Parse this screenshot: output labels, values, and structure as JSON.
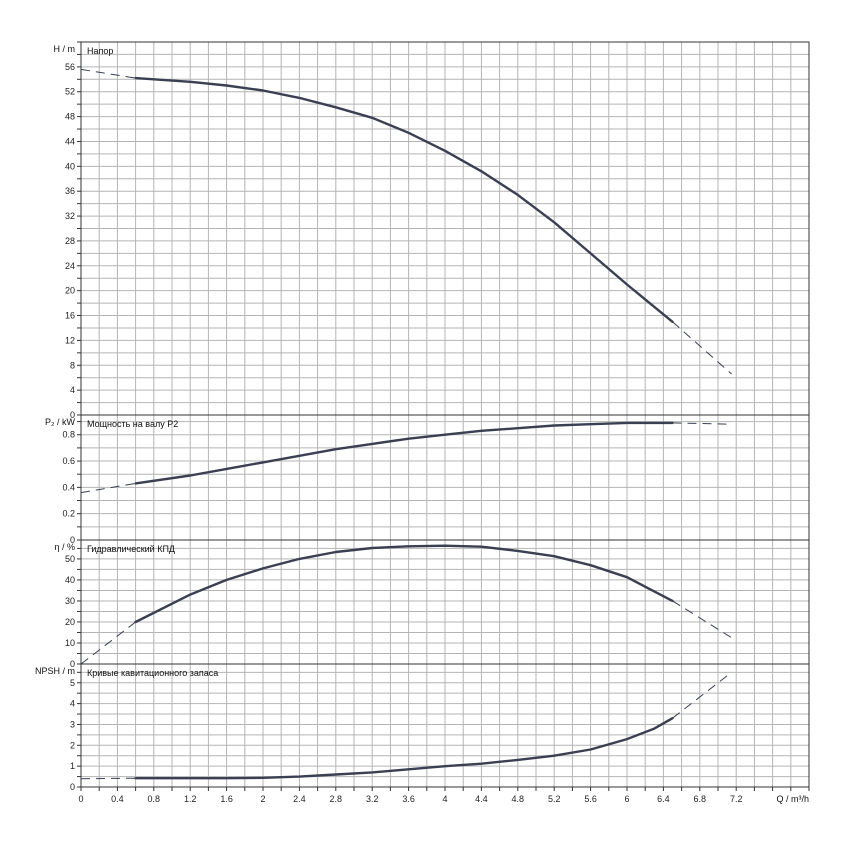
{
  "chart_data": {
    "type": "line",
    "x_axis": {
      "label": "Q / m³/h",
      "range": [
        0,
        8.0
      ],
      "ticks": [
        "0",
        "0.4",
        "0.8",
        "1.2",
        "1.6",
        "2",
        "2.4",
        "2.8",
        "3.2",
        "3.6",
        "4",
        "4.4",
        "4.8",
        "5.2",
        "5.6",
        "6",
        "6.4",
        "6.8",
        "7.2"
      ]
    },
    "panels": [
      {
        "id": "head",
        "title": "Напор",
        "ylabel": "H / m",
        "ylim": [
          0,
          60
        ],
        "yticks": [
          0,
          4,
          8,
          12,
          16,
          20,
          24,
          28,
          32,
          36,
          40,
          44,
          48,
          52,
          56
        ],
        "tick_step": 2,
        "label_step": 4,
        "solid": [
          [
            0.6,
            54.2
          ],
          [
            1.2,
            53.6
          ],
          [
            1.6,
            53.0
          ],
          [
            2.0,
            52.2
          ],
          [
            2.4,
            51.0
          ],
          [
            2.8,
            49.5
          ],
          [
            3.2,
            47.8
          ],
          [
            3.6,
            45.4
          ],
          [
            4.0,
            42.5
          ],
          [
            4.4,
            39.2
          ],
          [
            4.8,
            35.4
          ],
          [
            5.2,
            31.0
          ],
          [
            5.6,
            26.0
          ],
          [
            6.0,
            21.0
          ],
          [
            6.5,
            15.0
          ]
        ],
        "dashed_start": [
          [
            0.0,
            55.6
          ],
          [
            0.6,
            54.2
          ]
        ],
        "dashed_end": [
          [
            6.5,
            15.0
          ],
          [
            7.15,
            6.6
          ]
        ]
      },
      {
        "id": "power",
        "title": "Мощность на валу P2",
        "ylabel": "P₂ / kW",
        "ylim": [
          0,
          0.95
        ],
        "yticks": [
          0,
          0.2,
          0.4,
          0.6,
          0.8
        ],
        "tick_step": 0.1,
        "label_step": 0.2,
        "solid": [
          [
            0.6,
            0.43
          ],
          [
            1.2,
            0.49
          ],
          [
            1.6,
            0.54
          ],
          [
            2.0,
            0.59
          ],
          [
            2.4,
            0.64
          ],
          [
            2.8,
            0.69
          ],
          [
            3.2,
            0.73
          ],
          [
            3.6,
            0.77
          ],
          [
            4.0,
            0.8
          ],
          [
            4.4,
            0.83
          ],
          [
            4.8,
            0.85
          ],
          [
            5.2,
            0.87
          ],
          [
            5.6,
            0.88
          ],
          [
            6.0,
            0.89
          ],
          [
            6.5,
            0.89
          ]
        ],
        "dashed_start": [
          [
            0.0,
            0.36
          ],
          [
            0.6,
            0.43
          ]
        ],
        "dashed_end": [
          [
            6.5,
            0.89
          ],
          [
            7.15,
            0.88
          ]
        ]
      },
      {
        "id": "efficiency",
        "title": "Гидравлический КПД",
        "ylabel": "η / %",
        "ylim": [
          0,
          59
        ],
        "yticks": [
          0,
          10,
          20,
          30,
          40,
          50
        ],
        "tick_step": 5,
        "label_step": 10,
        "solid": [
          [
            0.6,
            20.0
          ],
          [
            1.2,
            33.0
          ],
          [
            1.6,
            40.0
          ],
          [
            2.0,
            45.5
          ],
          [
            2.4,
            50.0
          ],
          [
            2.8,
            53.3
          ],
          [
            3.2,
            55.2
          ],
          [
            3.6,
            56.0
          ],
          [
            4.0,
            56.3
          ],
          [
            4.4,
            55.8
          ],
          [
            4.8,
            53.8
          ],
          [
            5.2,
            51.3
          ],
          [
            5.6,
            47.0
          ],
          [
            6.0,
            41.3
          ],
          [
            6.5,
            30.0
          ]
        ],
        "dashed_start": [
          [
            0.0,
            0.0
          ],
          [
            0.6,
            20.0
          ]
        ],
        "dashed_end": [
          [
            6.5,
            30.0
          ],
          [
            7.15,
            12.5
          ]
        ]
      },
      {
        "id": "npsh",
        "title": "Кривые кавитационного запаса",
        "ylabel": "NPSH / m",
        "ylim": [
          0,
          5.9
        ],
        "yticks": [
          0,
          1,
          2,
          3,
          4,
          5
        ],
        "tick_step": 0.5,
        "label_step": 1,
        "solid": [
          [
            0.6,
            0.42
          ],
          [
            1.2,
            0.42
          ],
          [
            1.6,
            0.42
          ],
          [
            2.0,
            0.44
          ],
          [
            2.4,
            0.5
          ],
          [
            2.8,
            0.6
          ],
          [
            3.2,
            0.7
          ],
          [
            3.6,
            0.85
          ],
          [
            4.0,
            1.0
          ],
          [
            4.4,
            1.12
          ],
          [
            4.8,
            1.3
          ],
          [
            5.2,
            1.5
          ],
          [
            5.6,
            1.8
          ],
          [
            6.0,
            2.3
          ],
          [
            6.3,
            2.8
          ],
          [
            6.5,
            3.3
          ]
        ],
        "dashed_start": [
          [
            0.0,
            0.4
          ],
          [
            0.6,
            0.42
          ]
        ],
        "dashed_end": [
          [
            6.5,
            3.3
          ],
          [
            7.15,
            5.5
          ]
        ]
      }
    ],
    "grid": true,
    "line_color": "#3a3f52"
  }
}
